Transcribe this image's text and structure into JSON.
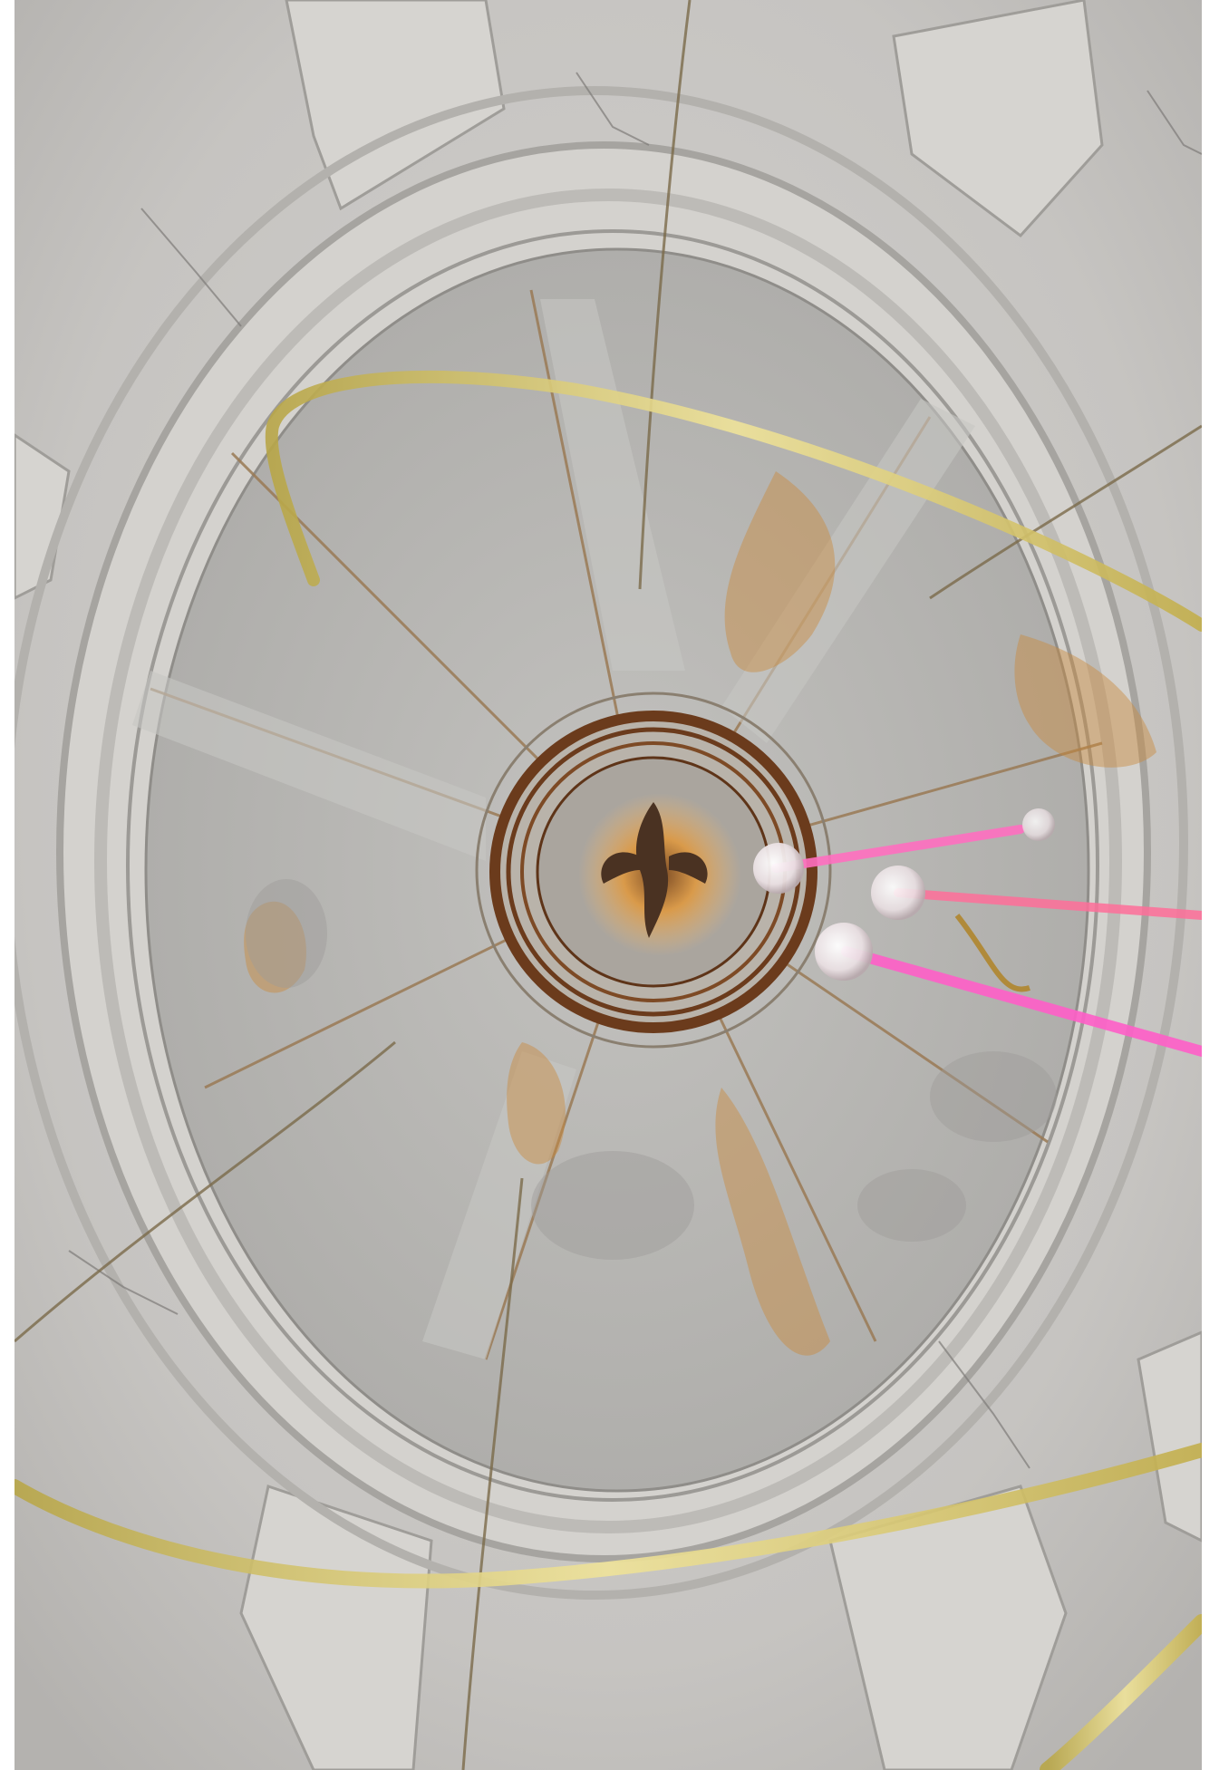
{
  "image": {
    "kind": "photograph",
    "subject_icon": "dome-ceiling-with-chandelier-icon",
    "colors": {
      "plaster": "#c9c7c4",
      "plaster_light": "#dcdad6",
      "plaster_shadow": "#a9a7a4",
      "fresco_field": "#b9b8b5",
      "stain_ochre": "#c98a3c",
      "ring_brown": "#6b3b1c",
      "sunburst": "#d99a4a",
      "brass": "#d8c463",
      "crystal_rod": "#ff6fc0",
      "crystal_bulb": "#f2ecec"
    }
  }
}
